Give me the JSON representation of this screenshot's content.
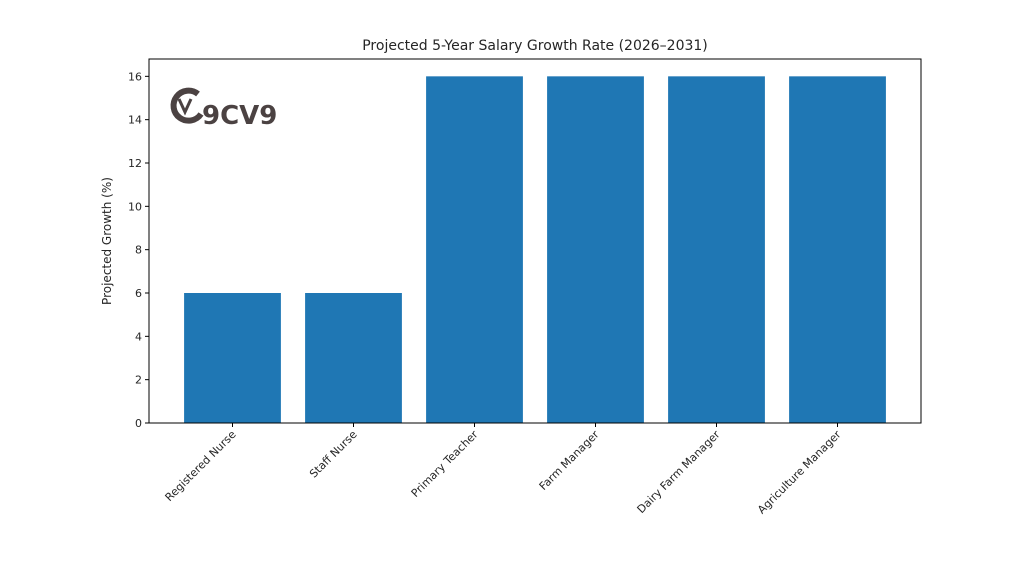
{
  "chart_data": {
    "type": "bar",
    "title": "Projected 5-Year Salary Growth Rate (2026–2031)",
    "xlabel": "",
    "ylabel": "Projected Growth (%)",
    "categories": [
      "Registered Nurse",
      "Staff Nurse",
      "Primary Teacher",
      "Farm Manager",
      "Dairy Farm Manager",
      "Agriculture Manager"
    ],
    "values": [
      6,
      6,
      16,
      16,
      16,
      16
    ],
    "ylim": [
      0,
      16.8
    ],
    "yticks": [
      0,
      2,
      4,
      6,
      8,
      10,
      12,
      14,
      16
    ],
    "grid": false,
    "bar_color": "#1f77b4",
    "xtick_rotation": 45
  },
  "logo": {
    "text": "9CV9",
    "mark": "v",
    "color": "#4b4242"
  }
}
